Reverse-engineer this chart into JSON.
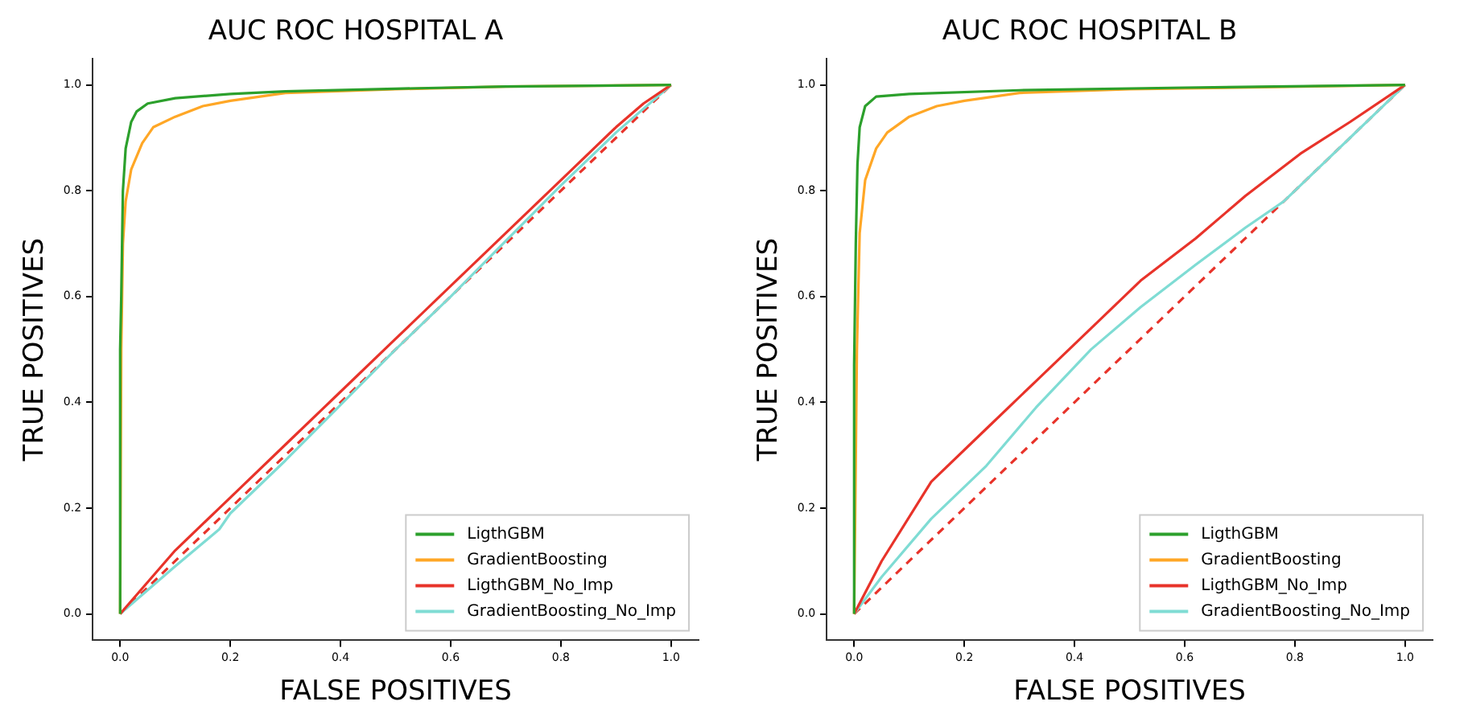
{
  "chart_data": [
    {
      "type": "line",
      "title": "AUC ROC HOSPITAL A",
      "xlabel": "FALSE POSITIVES",
      "ylabel": "TRUE POSITIVES",
      "xlim": [
        -0.05,
        1.05
      ],
      "ylim": [
        -0.05,
        1.05
      ],
      "xticks": [
        {
          "value": 0,
          "label": "0.0"
        },
        {
          "value": 0.2,
          "label": "0.2"
        },
        {
          "value": 0.4,
          "label": "0.4"
        },
        {
          "value": 0.6,
          "label": "0.6"
        },
        {
          "value": 0.8,
          "label": "0.8"
        },
        {
          "value": 1,
          "label": "1.0"
        }
      ],
      "yticks": [
        {
          "value": 0,
          "label": "0.0"
        },
        {
          "value": 0.2,
          "label": "0.2"
        },
        {
          "value": 0.4,
          "label": "0.4"
        },
        {
          "value": 0.6,
          "label": "0.6"
        },
        {
          "value": 0.8,
          "label": "0.8"
        },
        {
          "value": 1,
          "label": "1.0"
        }
      ],
      "grid": false,
      "legend": "bottom right",
      "marker": "none",
      "series": [
        {
          "name": "LigthGBM",
          "color": "#2ca02c",
          "x": [
            0,
            0,
            0.002,
            0.005,
            0.01,
            0.02,
            0.03,
            0.05,
            0.1,
            0.2,
            0.3,
            0.5,
            0.7,
            1
          ],
          "values": [
            0,
            0.5,
            0.6,
            0.8,
            0.88,
            0.93,
            0.95,
            0.965,
            0.975,
            0.983,
            0.988,
            0.993,
            0.997,
            1
          ]
        },
        {
          "name": "GradientBoosting",
          "color": "#ffa726",
          "x": [
            0,
            0.002,
            0.005,
            0.01,
            0.02,
            0.04,
            0.06,
            0.1,
            0.15,
            0.2,
            0.3,
            0.5,
            0.7,
            1
          ],
          "values": [
            0,
            0.5,
            0.7,
            0.78,
            0.84,
            0.89,
            0.92,
            0.94,
            0.96,
            0.97,
            0.985,
            0.992,
            0.997,
            1
          ]
        },
        {
          "name": "LigthGBM_No_Imp",
          "color": "#e8332a",
          "x": [
            0,
            0.05,
            0.1,
            0.2,
            0.3,
            0.4,
            0.5,
            0.6,
            0.7,
            0.8,
            0.9,
            0.95,
            1
          ],
          "values": [
            0,
            0.06,
            0.12,
            0.22,
            0.32,
            0.42,
            0.52,
            0.62,
            0.72,
            0.82,
            0.92,
            0.965,
            1
          ]
        },
        {
          "name": "GradientBoosting_No_Imp",
          "color": "#7fdcd4",
          "x": [
            0,
            0.1,
            0.18,
            0.2,
            0.3,
            0.4,
            0.5,
            0.6,
            0.7,
            0.8,
            0.9,
            1
          ],
          "values": [
            0,
            0.09,
            0.16,
            0.19,
            0.29,
            0.395,
            0.5,
            0.6,
            0.705,
            0.81,
            0.91,
            1
          ]
        },
        {
          "color": "#e8332a",
          "line_style": "dashed",
          "x": [
            0,
            1
          ],
          "values": [
            0,
            1
          ]
        }
      ]
    },
    {
      "type": "line",
      "title": "AUC ROC HOSPITAL B",
      "xlabel": "FALSE POSITIVES",
      "ylabel": "TRUE POSITIVES",
      "xlim": [
        -0.05,
        1.05
      ],
      "ylim": [
        -0.05,
        1.05
      ],
      "xticks": [
        {
          "value": 0,
          "label": "0.0"
        },
        {
          "value": 0.2,
          "label": "0.2"
        },
        {
          "value": 0.4,
          "label": "0.4"
        },
        {
          "value": 0.6,
          "label": "0.6"
        },
        {
          "value": 0.8,
          "label": "0.8"
        },
        {
          "value": 1,
          "label": "1.0"
        }
      ],
      "yticks": [
        {
          "value": 0,
          "label": "0.0"
        },
        {
          "value": 0.2,
          "label": "0.2"
        },
        {
          "value": 0.4,
          "label": "0.4"
        },
        {
          "value": 0.6,
          "label": "0.6"
        },
        {
          "value": 0.8,
          "label": "0.8"
        },
        {
          "value": 1,
          "label": "1.0"
        }
      ],
      "grid": false,
      "legend": "bottom right",
      "marker": "none",
      "series": [
        {
          "name": "LigthGBM",
          "color": "#2ca02c",
          "x": [
            0,
            0,
            0.003,
            0.006,
            0.01,
            0.02,
            0.04,
            0.1,
            0.3,
            0.6,
            1
          ],
          "values": [
            0,
            0.47,
            0.7,
            0.85,
            0.92,
            0.96,
            0.978,
            0.983,
            0.99,
            0.995,
            1
          ]
        },
        {
          "name": "GradientBoosting",
          "color": "#ffa726",
          "x": [
            0,
            0.005,
            0.01,
            0.02,
            0.04,
            0.06,
            0.1,
            0.15,
            0.2,
            0.3,
            0.5,
            1
          ],
          "values": [
            0,
            0.5,
            0.72,
            0.82,
            0.88,
            0.91,
            0.94,
            0.96,
            0.97,
            0.985,
            0.992,
            1
          ]
        },
        {
          "name": "LigthGBM_No_Imp",
          "color": "#e8332a",
          "x": [
            0,
            0.05,
            0.14,
            0.24,
            0.33,
            0.43,
            0.52,
            0.62,
            0.71,
            0.81,
            0.9,
            1
          ],
          "values": [
            0,
            0.1,
            0.25,
            0.35,
            0.44,
            0.54,
            0.63,
            0.71,
            0.79,
            0.87,
            0.93,
            1
          ]
        },
        {
          "name": "GradientBoosting_No_Imp",
          "color": "#7fdcd4",
          "x": [
            0,
            0.05,
            0.14,
            0.24,
            0.33,
            0.43,
            0.52,
            0.62,
            0.71,
            0.78,
            0.9,
            1
          ],
          "values": [
            0,
            0.07,
            0.18,
            0.28,
            0.39,
            0.5,
            0.58,
            0.66,
            0.73,
            0.78,
            0.9,
            1
          ]
        },
        {
          "color": "#e8332a",
          "line_style": "dashed",
          "x": [
            0,
            1
          ],
          "values": [
            0,
            1
          ]
        }
      ]
    }
  ]
}
